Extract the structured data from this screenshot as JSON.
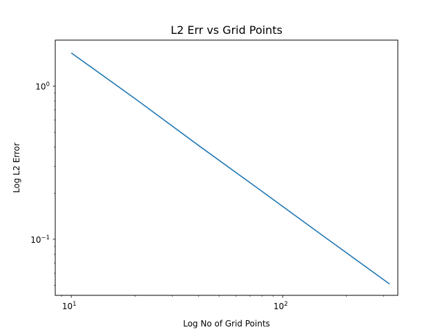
{
  "chart_data": {
    "type": "line",
    "title": "L2 Err vs Grid Points",
    "xlabel": "Log No of Grid Points",
    "ylabel": "Log L2 Error",
    "xscale": "log",
    "yscale": "log",
    "xlim": [
      8.4,
      350
    ],
    "ylim": [
      0.043,
      2.0
    ],
    "grid": false,
    "line_color": "#1f77b4",
    "x_ticks": [
      {
        "value": 10,
        "base": "10",
        "exp": "1"
      },
      {
        "value": 100,
        "base": "10",
        "exp": "2"
      }
    ],
    "y_ticks": [
      {
        "value": 1,
        "base": "10",
        "exp": "0"
      },
      {
        "value": 0.1,
        "base": "10",
        "exp": "−1"
      }
    ],
    "series": [
      {
        "x": [
          10,
          20,
          40,
          80,
          160,
          320
        ],
        "y": [
          1.65,
          0.83,
          0.41,
          0.205,
          0.102,
          0.051
        ]
      }
    ]
  }
}
